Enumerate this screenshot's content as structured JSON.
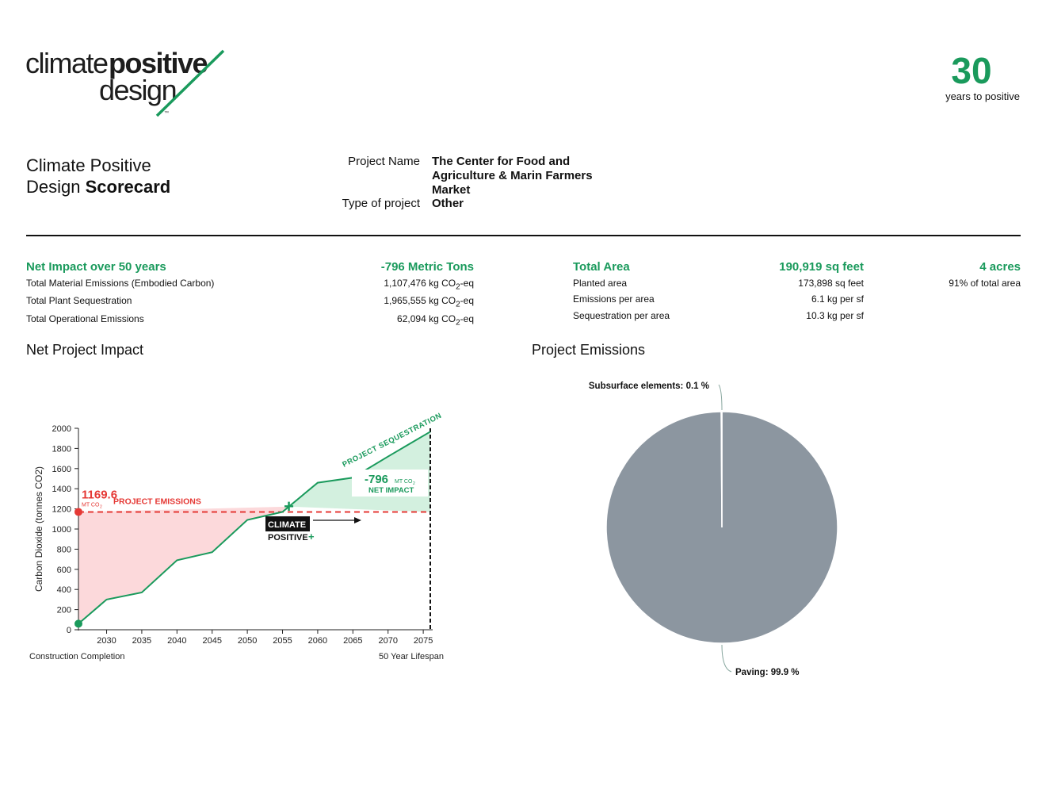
{
  "logo": {
    "word_light_1": "climate",
    "word_bold": "positive",
    "word_light_2": "design",
    "tm": "™"
  },
  "years": {
    "value": "30",
    "label": "years to positive"
  },
  "header": {
    "title_line1": "Climate Positive",
    "title_line2_prefix": "Design ",
    "title_line2_bold": "Scorecard",
    "project_name_label": "Project Name",
    "project_name_value": "The Center for Food and Agriculture & Marin Farmers Market",
    "project_type_label": "Type of project",
    "project_type_value": "Other"
  },
  "impact": {
    "head_label": "Net Impact over 50 years",
    "head_value": "-796 Metric Tons",
    "rows": [
      {
        "label": "Total Material Emissions (Embodied Carbon)",
        "value": "1,107,476 kg CO",
        "sub": "2",
        "suffix": "-eq"
      },
      {
        "label": "Total Plant Sequestration",
        "value": "1,965,555 kg CO",
        "sub": "2",
        "suffix": "-eq"
      },
      {
        "label": "Total Operational Emissions",
        "value": "62,094 kg CO",
        "sub": "2",
        "suffix": "-eq"
      }
    ]
  },
  "area": {
    "head_label": "Total Area",
    "head_value": "190,919 sq feet",
    "head_acres": "4 acres",
    "rows": [
      {
        "label": "Planted area",
        "value": "173,898 sq feet",
        "extra": "91% of total area"
      },
      {
        "label": "Emissions per area",
        "value": "6.1 kg per sf",
        "extra": ""
      },
      {
        "label": "Sequestration per area",
        "value": "10.3 kg per sf",
        "extra": ""
      }
    ]
  },
  "sections": {
    "net_project_impact": "Net Project Impact",
    "project_emissions": "Project Emissions"
  },
  "colors": {
    "green": "#1a9a5c",
    "red": "#e53935",
    "red_fill": "#fcd9db",
    "green_fill": "#d3f0df",
    "pie_gray": "#8c96a0"
  },
  "chart_data": [
    {
      "type": "line",
      "title": "",
      "xlabel": "",
      "ylabel": "Carbon Dioxide (tonnes CO2)",
      "xlim": [
        2026,
        2076
      ],
      "ylim": [
        0,
        2000
      ],
      "x_ticks": [
        2030,
        2035,
        2040,
        2045,
        2050,
        2055,
        2060,
        2065,
        2070,
        2075
      ],
      "y_ticks": [
        0,
        200,
        400,
        600,
        800,
        1000,
        1200,
        1400,
        1600,
        1800,
        2000
      ],
      "series": [
        {
          "name": "",
          "x": [
            2026,
            2030,
            2035,
            2040,
            2045,
            2050,
            2055,
            2060,
            2065,
            2070,
            2076
          ],
          "y": [
            60,
            300,
            370,
            690,
            770,
            1090,
            1170,
            1460,
            1510,
            1720,
            1966
          ]
        }
      ],
      "emissions_level": 1169.6,
      "annotations": {
        "emissions_value": "1169.6",
        "emissions_unit": "MT CO",
        "emissions_unit_sub": "2",
        "emissions_label": "PROJECT EMISSIONS",
        "sequestration_label": "PROJECT SEQUESTRATION",
        "net_value": "-796",
        "net_unit": "MT CO",
        "net_unit_sub": "2",
        "net_label": "NET IMPACT",
        "climate_label": "CLIMATE",
        "positive_label": "POSITIVE",
        "positive_mark": "+",
        "crossover_x": 2055.9
      },
      "footer_left": "Construction Completion",
      "footer_right": "50 Year Lifespan"
    },
    {
      "type": "pie",
      "title": "",
      "slices": [
        {
          "label": "Paving: 99.9 %",
          "value": 99.9
        },
        {
          "label": "Subsurface elements: 0.1 %",
          "value": 0.1
        }
      ]
    }
  ]
}
